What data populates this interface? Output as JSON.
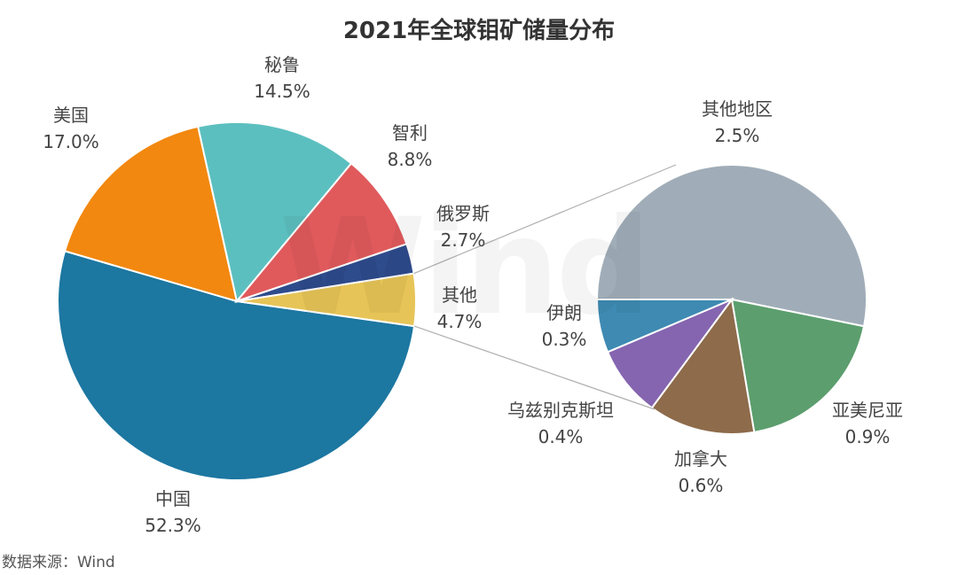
{
  "chart_data": [
    {
      "type": "pie",
      "title": "2021年全球钼矿储量分布",
      "unit": "%",
      "slices": [
        {
          "label": "中国",
          "value": 52.3,
          "color": "#1c77a1"
        },
        {
          "label": "美国",
          "value": 17.0,
          "color": "#f2880f"
        },
        {
          "label": "秘鲁",
          "value": 14.5,
          "color": "#5cbfbf"
        },
        {
          "label": "智利",
          "value": 8.8,
          "color": "#e05a5c"
        },
        {
          "label": "俄罗斯",
          "value": 2.7,
          "color": "#2e4b8c"
        },
        {
          "label": "其他",
          "value": 4.7,
          "color": "#e6c457"
        }
      ]
    },
    {
      "type": "pie",
      "title": "",
      "unit": "%",
      "breakdown_of": "其他",
      "slices": [
        {
          "label": "其他地区",
          "value": 2.5,
          "color": "#a0adb8"
        },
        {
          "label": "亚美尼亚",
          "value": 0.9,
          "color": "#5c9e6e"
        },
        {
          "label": "加拿大",
          "value": 0.6,
          "color": "#8d6b4b"
        },
        {
          "label": "乌兹别克斯坦",
          "value": 0.4,
          "color": "#8565b0"
        },
        {
          "label": "伊朗",
          "value": 0.3,
          "color": "#3e8ab2"
        }
      ]
    }
  ],
  "source": "数据来源：Wind",
  "watermark": "Wind"
}
